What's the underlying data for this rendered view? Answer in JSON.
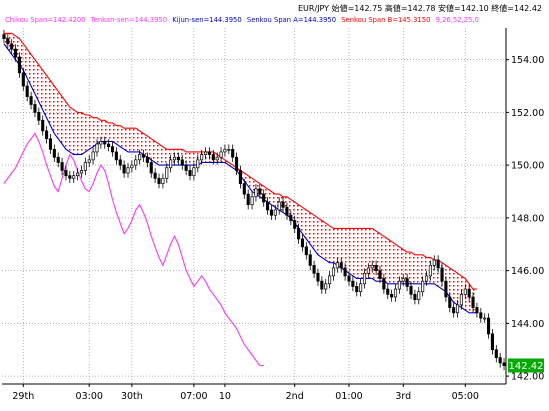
{
  "chart_data": {
    "type": "candlestick",
    "header": {
      "ohlc": "EUR/JPY 始値=142.75 高値=142.78 安値=142.10 終値=142.42",
      "legend": [
        {
          "name": "Chikou Span",
          "text": "Chikou Span=142.4200",
          "color": "#ff33ff"
        },
        {
          "name": "Tenkan-sen",
          "text": "Tenkan-sen=144.3950",
          "color": "#ff33ff"
        },
        {
          "name": "Kijun-sen",
          "text": "Kijun-sen=144.3950",
          "color": "#0000cc"
        },
        {
          "name": "Senkou Span A",
          "text": "Senkou Span A=144.3950",
          "color": "#0000cc"
        },
        {
          "name": "Senkou Span B",
          "text": "Senkou Span B=145.3150",
          "color": "#ff0000"
        },
        {
          "name": "date",
          "text": "9,26,52,25,0",
          "color": "#ff33ff"
        }
      ]
    },
    "y_ticks": [
      "154.00",
      "152.00",
      "150.00",
      "148.00",
      "146.00",
      "144.00",
      "142.00"
    ],
    "y_tick_values": [
      154,
      152,
      150,
      148,
      146,
      144,
      142
    ],
    "ylim": [
      141.7,
      155.2
    ],
    "x_ticks": [
      "29th",
      "03:00",
      "30th",
      "07:00",
      "10",
      "2nd",
      "01:00",
      "3rd",
      "05:00"
    ],
    "x_tick_index": [
      5,
      22,
      33,
      49,
      57,
      75,
      89,
      103,
      119
    ],
    "n_bars": 130,
    "current_price": "142.42",
    "colors": {
      "cloud": "#ff0000",
      "kijun": "#0000cc",
      "spanB": "#ff0000",
      "chikou": "#ff33ff",
      "price_tag": "#00aa00"
    },
    "candle_close": [
      154.8,
      154.6,
      154.4,
      154.1,
      153.5,
      153.0,
      152.6,
      152.3,
      152.0,
      151.7,
      151.3,
      151.0,
      150.6,
      150.3,
      150.1,
      149.8,
      149.6,
      149.5,
      149.6,
      149.7,
      149.8,
      150.1,
      150.2,
      150.5,
      150.8,
      150.9,
      150.8,
      150.7,
      150.5,
      150.2,
      150.0,
      149.7,
      149.9,
      150.0,
      150.2,
      150.4,
      150.3,
      150.1,
      149.7,
      149.5,
      149.3,
      149.5,
      149.9,
      150.2,
      150.3,
      150.2,
      150.0,
      149.8,
      149.6,
      149.9,
      150.2,
      150.4,
      150.5,
      150.4,
      150.2,
      150.3,
      150.5,
      150.6,
      150.6,
      150.3,
      149.8,
      149.3,
      148.9,
      148.5,
      148.8,
      149.1,
      148.9,
      148.6,
      148.3,
      148.1,
      148.3,
      148.6,
      148.4,
      148.1,
      147.9,
      147.6,
      147.2,
      146.9,
      146.6,
      146.2,
      145.9,
      145.6,
      145.3,
      145.5,
      145.8,
      146.1,
      146.3,
      146.1,
      145.8,
      145.6,
      145.4,
      145.2,
      145.5,
      145.9,
      146.1,
      146.2,
      146.0,
      145.7,
      145.3,
      145.1,
      145.0,
      145.3,
      145.6,
      145.7,
      145.4,
      145.1,
      144.9,
      145.2,
      145.6,
      145.8,
      146.2,
      146.4,
      146.1,
      145.6,
      145.0,
      144.6,
      144.4,
      144.7,
      145.1,
      145.3,
      145.0,
      144.6,
      144.4,
      144.2,
      144.2,
      143.6,
      143.0,
      142.7,
      142.5,
      142.4
    ],
    "kijun": [
      154.6,
      154.4,
      154.2,
      154.0,
      153.8,
      153.6,
      153.3,
      153.0,
      152.7,
      152.4,
      152.1,
      151.8,
      151.5,
      151.2,
      151.0,
      150.8,
      150.6,
      150.5,
      150.4,
      150.4,
      150.4,
      150.5,
      150.6,
      150.7,
      150.8,
      150.9,
      150.9,
      150.9,
      150.9,
      150.8,
      150.7,
      150.6,
      150.5,
      150.5,
      150.5,
      150.5,
      150.4,
      150.3,
      150.2,
      150.1,
      150.0,
      150.0,
      150.0,
      150.0,
      150.0,
      150.0,
      150.0,
      150.0,
      150.0,
      150.0,
      150.0,
      150.1,
      150.1,
      150.1,
      150.1,
      150.1,
      150.1,
      150.1,
      150.0,
      149.9,
      149.8,
      149.6,
      149.4,
      149.2,
      149.0,
      148.9,
      148.8,
      148.7,
      148.6,
      148.5,
      148.4,
      148.3,
      148.2,
      148.1,
      148.0,
      147.8,
      147.6,
      147.4,
      147.2,
      147.0,
      146.8,
      146.6,
      146.5,
      146.4,
      146.3,
      146.3,
      146.2,
      146.1,
      146.0,
      145.9,
      145.8,
      145.7,
      145.7,
      145.7,
      145.7,
      145.7,
      145.6,
      145.6,
      145.6,
      145.5,
      145.5,
      145.5,
      145.5,
      145.5,
      145.5,
      145.5,
      145.5,
      145.5,
      145.5,
      145.5,
      145.5,
      145.5,
      145.4,
      145.3,
      145.2,
      145.0,
      144.8,
      144.7,
      144.6,
      144.5,
      144.4,
      144.4,
      144.4,
      null,
      null,
      null,
      null,
      null,
      null,
      null
    ],
    "span_b": [
      155.0,
      155.0,
      155.0,
      154.9,
      154.8,
      154.6,
      154.4,
      154.2,
      154.0,
      153.8,
      153.6,
      153.4,
      153.2,
      153.0,
      152.8,
      152.6,
      152.4,
      152.2,
      152.1,
      152.0,
      152.0,
      151.9,
      151.9,
      151.8,
      151.8,
      151.7,
      151.7,
      151.6,
      151.6,
      151.5,
      151.5,
      151.4,
      151.4,
      151.4,
      151.4,
      151.3,
      151.2,
      151.1,
      151.0,
      150.9,
      150.8,
      150.7,
      150.6,
      150.6,
      150.6,
      150.6,
      150.6,
      150.5,
      150.5,
      150.5,
      150.5,
      150.5,
      150.5,
      150.5,
      150.5,
      150.4,
      150.3,
      150.2,
      150.1,
      150.0,
      149.9,
      149.8,
      149.7,
      149.6,
      149.5,
      149.4,
      149.3,
      149.2,
      149.1,
      149.0,
      148.9,
      148.9,
      148.8,
      148.8,
      148.7,
      148.6,
      148.5,
      148.4,
      148.3,
      148.2,
      148.1,
      148.0,
      147.9,
      147.8,
      147.7,
      147.6,
      147.6,
      147.6,
      147.6,
      147.6,
      147.6,
      147.6,
      147.6,
      147.6,
      147.6,
      147.6,
      147.5,
      147.4,
      147.3,
      147.2,
      147.1,
      147.0,
      146.9,
      146.8,
      146.7,
      146.7,
      146.6,
      146.6,
      146.6,
      146.5,
      146.5,
      146.4,
      146.4,
      146.3,
      146.2,
      146.1,
      146.0,
      145.9,
      145.8,
      145.7,
      145.5,
      145.3,
      145.3,
      null,
      null,
      null,
      null,
      null,
      null,
      null
    ],
    "chikou": [
      149.3,
      149.5,
      149.7,
      149.9,
      150.2,
      150.5,
      150.8,
      151.0,
      151.2,
      150.9,
      150.5,
      150.0,
      149.6,
      149.2,
      149.0,
      149.5,
      150.0,
      150.4,
      150.2,
      149.8,
      149.4,
      149.1,
      149.0,
      149.3,
      149.7,
      150.0,
      149.8,
      149.3,
      148.7,
      148.2,
      147.8,
      147.4,
      147.6,
      147.9,
      148.3,
      148.5,
      148.2,
      147.8,
      147.3,
      146.9,
      146.5,
      146.2,
      146.6,
      147.0,
      147.3,
      147.0,
      146.5,
      146.0,
      145.7,
      145.4,
      145.6,
      145.8,
      145.6,
      145.3,
      145.1,
      144.9,
      144.7,
      144.4,
      144.2,
      144.0,
      143.8,
      143.5,
      143.2,
      143.0,
      142.8,
      142.6,
      142.4,
      142.4,
      null,
      null,
      null,
      null,
      null,
      null,
      null,
      null,
      null,
      null,
      null,
      null,
      null,
      null,
      null,
      null,
      null,
      null,
      null,
      null,
      null,
      null,
      null,
      null,
      null,
      null,
      null,
      null,
      null,
      null,
      null,
      null,
      null,
      null,
      null,
      null,
      null,
      null,
      null,
      null,
      null,
      null,
      null,
      null,
      null,
      null,
      null,
      null,
      null,
      null,
      null,
      null,
      null,
      null,
      null,
      null,
      null,
      null,
      null,
      null,
      null,
      null,
      null,
      null,
      null
    ]
  }
}
